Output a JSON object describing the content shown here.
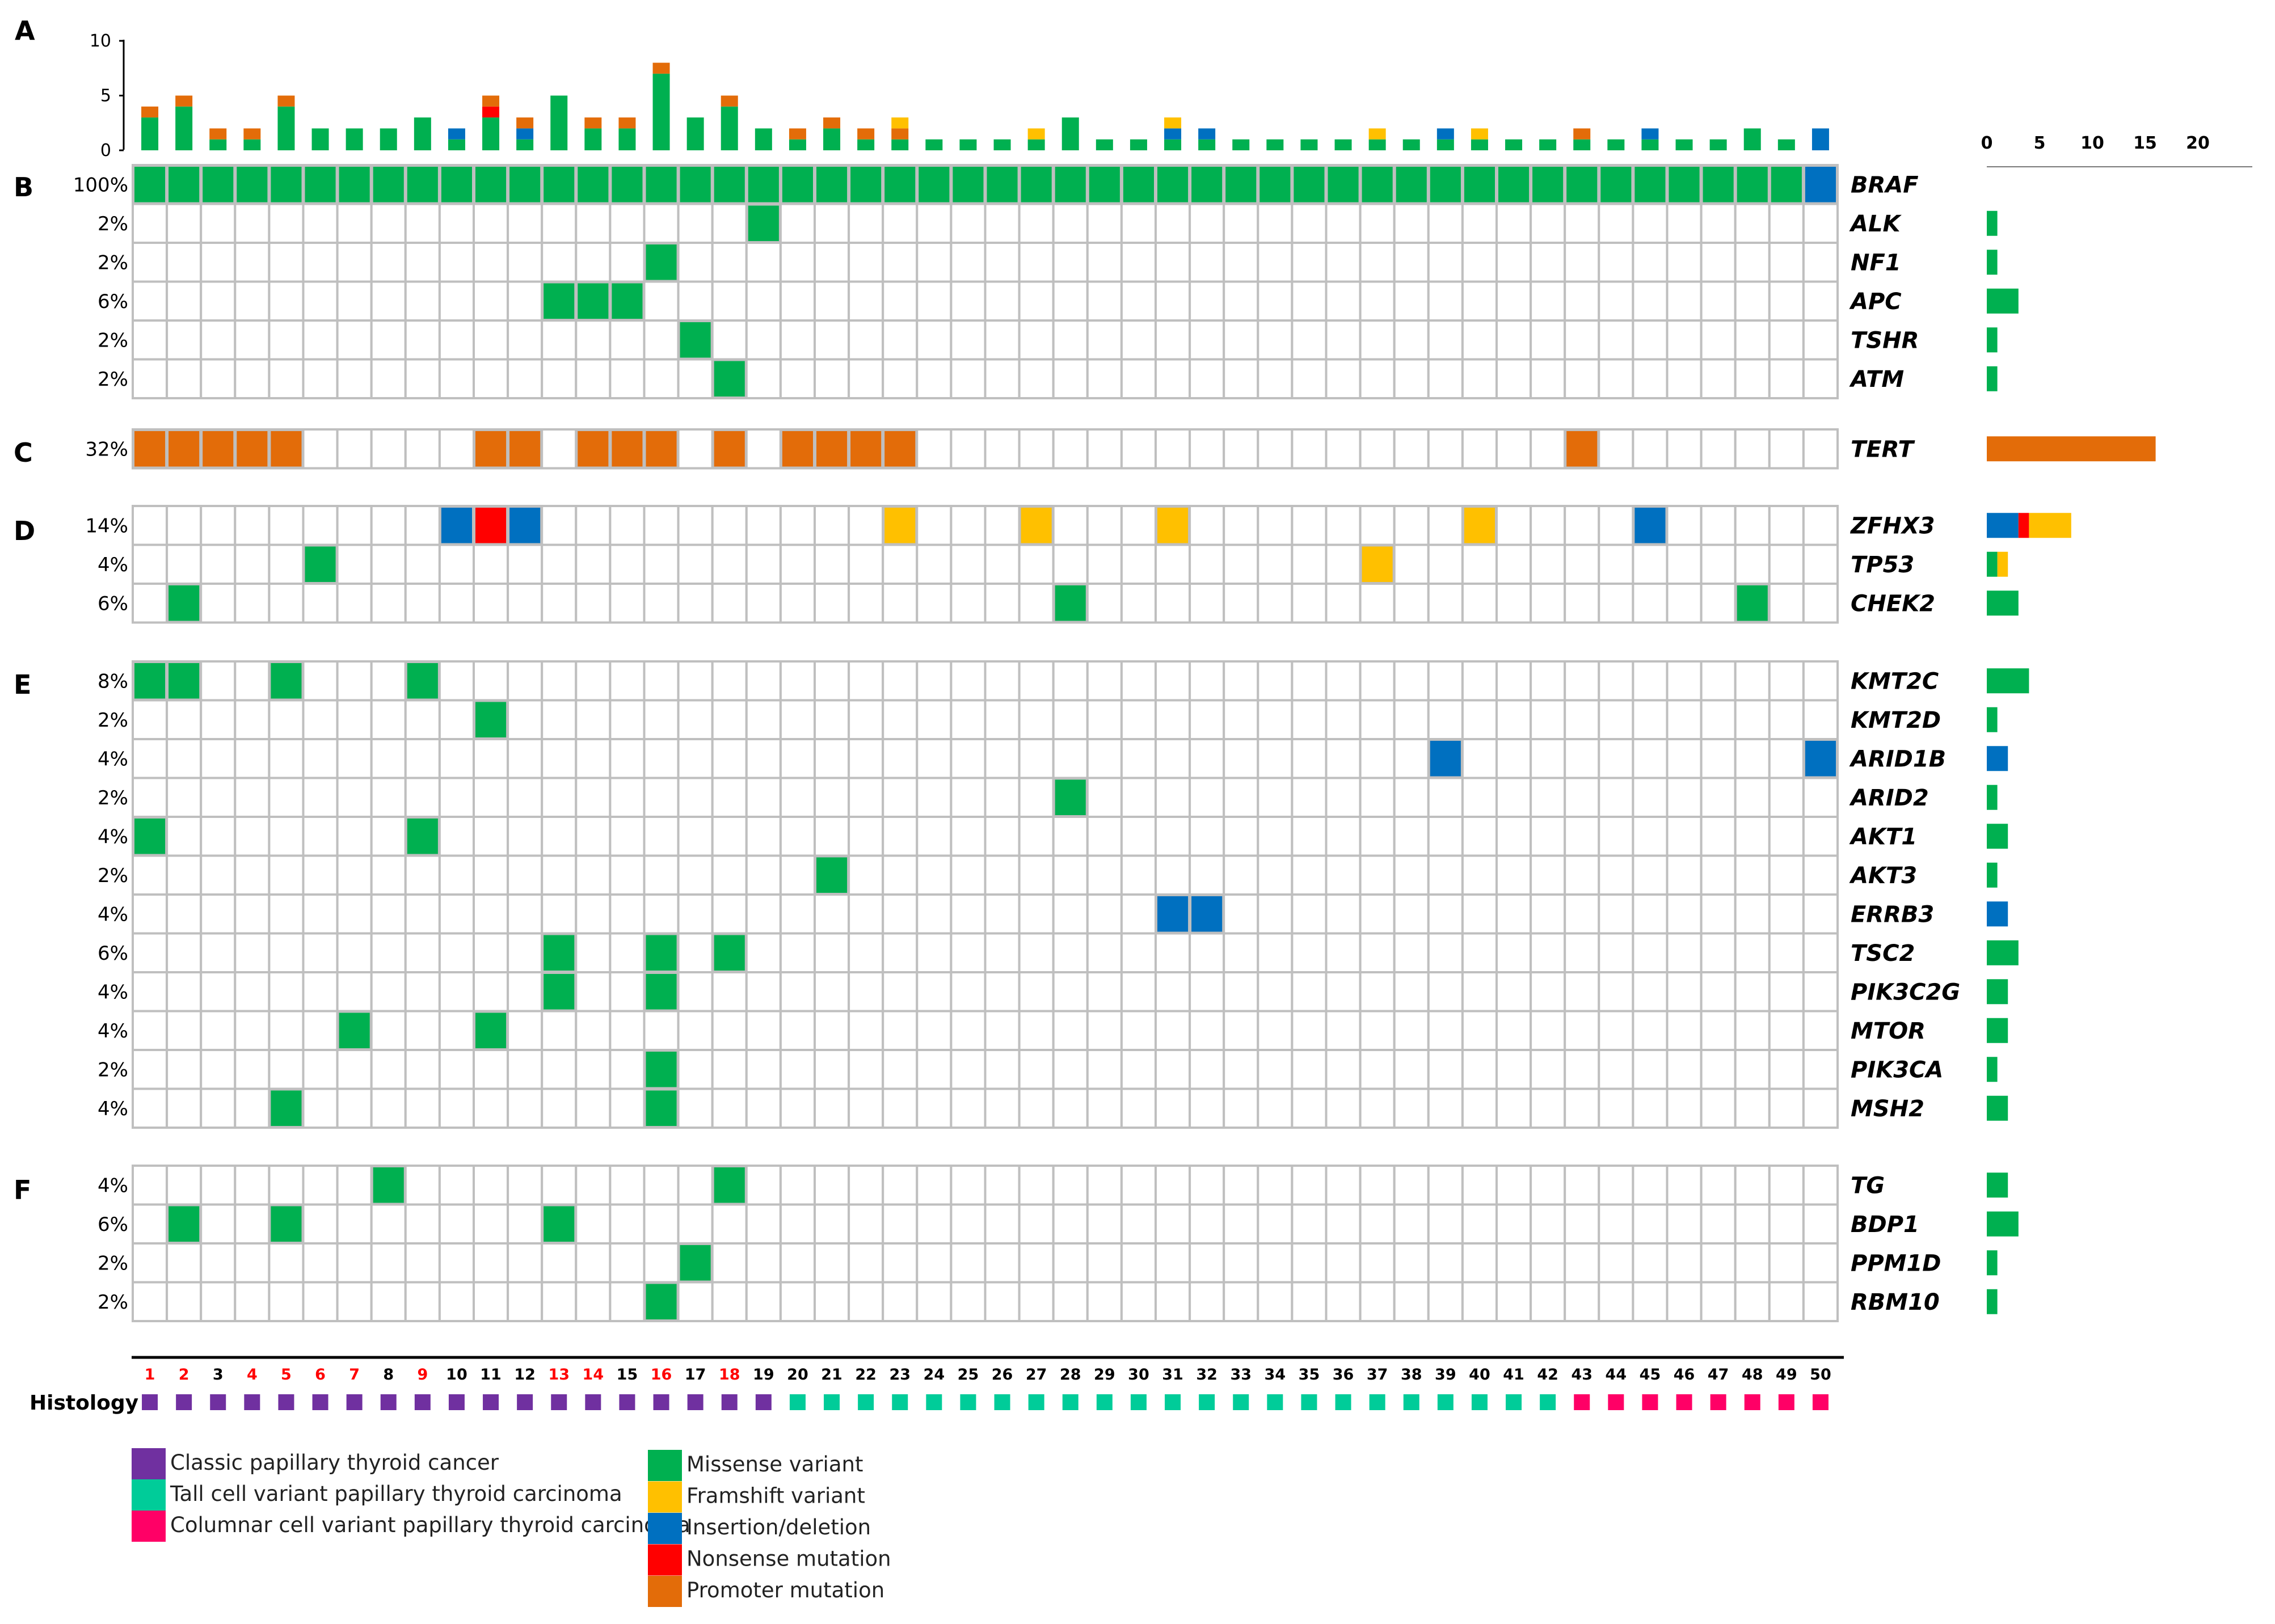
{
  "panel_labels": [
    "A",
    "B",
    "C",
    "D",
    "E",
    "F"
  ],
  "colors": {
    "missense": "#00b050",
    "frameshift": "#ffc000",
    "indel": "#0070c0",
    "nonsense": "#ff0000",
    "promoter": "#e36c09",
    "classic": "#7030a0",
    "tall": "#00cc99",
    "columnar": "#ff0066",
    "grid": "#bfbfbf",
    "red_label": "#ff0000"
  },
  "chart_data": {
    "type": "heatmap",
    "samples": [
      1,
      2,
      3,
      4,
      5,
      6,
      7,
      8,
      9,
      10,
      11,
      12,
      13,
      14,
      15,
      16,
      17,
      18,
      19,
      20,
      21,
      22,
      23,
      24,
      25,
      26,
      27,
      28,
      29,
      30,
      31,
      32,
      33,
      34,
      35,
      36,
      37,
      38,
      39,
      40,
      41,
      42,
      43,
      44,
      45,
      46,
      47,
      48,
      49,
      50
    ],
    "red_samples": [
      1,
      2,
      4,
      5,
      6,
      7,
      9,
      13,
      14,
      16,
      18
    ],
    "histology": [
      "classic",
      "classic",
      "classic",
      "classic",
      "classic",
      "classic",
      "classic",
      "classic",
      "classic",
      "classic",
      "classic",
      "classic",
      "classic",
      "classic",
      "classic",
      "classic",
      "classic",
      "classic",
      "classic",
      "tall",
      "tall",
      "tall",
      "tall",
      "tall",
      "tall",
      "tall",
      "tall",
      "tall",
      "tall",
      "tall",
      "tall",
      "tall",
      "tall",
      "tall",
      "tall",
      "tall",
      "tall",
      "tall",
      "tall",
      "tall",
      "tall",
      "tall",
      "columnar",
      "columnar",
      "columnar",
      "columnar",
      "columnar",
      "columnar",
      "columnar",
      "columnar"
    ],
    "histology_label": "Histology",
    "top_axis": {
      "ticks": [
        "0",
        "5",
        "10"
      ],
      "ylim": [
        0,
        10
      ]
    },
    "side_axis": {
      "ticks": [
        "0",
        "5",
        "10",
        "15",
        "20"
      ],
      "xlim": [
        0,
        20
      ]
    },
    "panels": [
      {
        "label": "B",
        "genes": [
          {
            "gene": "BRAF",
            "pct": "100%",
            "calls": [
              [
                "1-49",
                "missense"
              ],
              [
                "50",
                "indel"
              ]
            ]
          },
          {
            "gene": "ALK",
            "pct": "2%",
            "calls": [
              [
                "19",
                "missense"
              ]
            ]
          },
          {
            "gene": "NF1",
            "pct": "2%",
            "calls": [
              [
                "16",
                "missense"
              ]
            ]
          },
          {
            "gene": "APC",
            "pct": "6%",
            "calls": [
              [
                "13",
                "missense"
              ],
              [
                "14",
                "missense"
              ],
              [
                "15",
                "missense"
              ]
            ]
          },
          {
            "gene": "TSHR",
            "pct": "2%",
            "calls": [
              [
                "17",
                "missense"
              ]
            ]
          },
          {
            "gene": "ATM",
            "pct": "2%",
            "calls": [
              [
                "18",
                "missense"
              ]
            ]
          }
        ]
      },
      {
        "label": "C",
        "genes": [
          {
            "gene": "TERT",
            "pct": "32%",
            "calls": [
              [
                "1-5",
                "promoter"
              ],
              [
                "11-12",
                "promoter"
              ],
              [
                "14-16",
                "promoter"
              ],
              [
                "18",
                "promoter"
              ],
              [
                "20-23",
                "promoter"
              ],
              [
                "43",
                "promoter"
              ]
            ]
          }
        ]
      },
      {
        "label": "D",
        "genes": [
          {
            "gene": "ZFHX3",
            "pct": "14%",
            "calls": [
              [
                "10",
                "indel"
              ],
              [
                "11",
                "nonsense"
              ],
              [
                "12",
                "indel"
              ],
              [
                "23",
                "frameshift"
              ],
              [
                "27",
                "frameshift"
              ],
              [
                "31",
                "frameshift"
              ],
              [
                "40",
                "frameshift"
              ],
              [
                "45",
                "indel"
              ]
            ]
          },
          {
            "gene": "TP53",
            "pct": "4%",
            "calls": [
              [
                "6",
                "missense"
              ],
              [
                "37",
                "frameshift"
              ]
            ]
          },
          {
            "gene": "CHEK2",
            "pct": "6%",
            "calls": [
              [
                "2",
                "missense"
              ],
              [
                "28",
                "missense"
              ],
              [
                "48",
                "missense"
              ]
            ]
          }
        ]
      },
      {
        "label": "E",
        "genes": [
          {
            "gene": "KMT2C",
            "pct": "8%",
            "calls": [
              [
                "1",
                "missense"
              ],
              [
                "2",
                "missense"
              ],
              [
                "5",
                "missense"
              ],
              [
                "9",
                "missense"
              ]
            ]
          },
          {
            "gene": "KMT2D",
            "pct": "2%",
            "calls": [
              [
                "11",
                "missense"
              ]
            ]
          },
          {
            "gene": "ARID1B",
            "pct": "4%",
            "calls": [
              [
                "39",
                "indel"
              ],
              [
                "50",
                "indel"
              ]
            ]
          },
          {
            "gene": "ARID2",
            "pct": "2%",
            "calls": [
              [
                "28",
                "missense"
              ]
            ]
          },
          {
            "gene": "AKT1",
            "pct": "4%",
            "calls": [
              [
                "1",
                "missense"
              ],
              [
                "9",
                "missense"
              ]
            ]
          },
          {
            "gene": "AKT3",
            "pct": "2%",
            "calls": [
              [
                "21",
                "missense"
              ]
            ]
          },
          {
            "gene": "ERRB3",
            "pct": "4%",
            "calls": [
              [
                "31",
                "indel"
              ],
              [
                "32",
                "indel"
              ]
            ]
          },
          {
            "gene": "TSC2",
            "pct": "6%",
            "calls": [
              [
                "13",
                "missense"
              ],
              [
                "16",
                "missense"
              ],
              [
                "18",
                "missense"
              ]
            ]
          },
          {
            "gene": "PIK3C2G",
            "pct": "4%",
            "calls": [
              [
                "13",
                "missense"
              ],
              [
                "16",
                "missense"
              ]
            ]
          },
          {
            "gene": "MTOR",
            "pct": "4%",
            "calls": [
              [
                "7",
                "missense"
              ],
              [
                "11",
                "missense"
              ]
            ]
          },
          {
            "gene": "PIK3CA",
            "pct": "2%",
            "calls": [
              [
                "16",
                "missense"
              ]
            ]
          },
          {
            "gene": "MSH2",
            "pct": "4%",
            "calls": [
              [
                "5",
                "missense"
              ],
              [
                "16",
                "missense"
              ]
            ]
          }
        ]
      },
      {
        "label": "F",
        "genes": [
          {
            "gene": "TG",
            "pct": "4%",
            "calls": [
              [
                "8",
                "missense"
              ],
              [
                "18",
                "missense"
              ]
            ]
          },
          {
            "gene": "BDP1",
            "pct": "6%",
            "calls": [
              [
                "2",
                "missense"
              ],
              [
                "5",
                "missense"
              ],
              [
                "13",
                "missense"
              ]
            ]
          },
          {
            "gene": "PPM1D",
            "pct": "2%",
            "calls": [
              [
                "17",
                "missense"
              ]
            ]
          },
          {
            "gene": "RBM10",
            "pct": "2%",
            "calls": [
              [
                "16",
                "missense"
              ]
            ]
          }
        ]
      }
    ]
  },
  "legend": {
    "histology": [
      {
        "key": "classic",
        "label": "Classic papillary thyroid cancer"
      },
      {
        "key": "tall",
        "label": "Tall cell variant papillary thyroid carcinoma"
      },
      {
        "key": "columnar",
        "label": "Columnar cell variant papillary thyroid carcinoma"
      }
    ],
    "mutations": [
      {
        "key": "missense",
        "label": "Missense variant"
      },
      {
        "key": "frameshift",
        "label": "Framshift variant"
      },
      {
        "key": "indel",
        "label": "Insertion/deletion"
      },
      {
        "key": "nonsense",
        "label": "Nonsense mutation"
      },
      {
        "key": "promoter",
        "label": "Promoter mutation"
      }
    ]
  }
}
